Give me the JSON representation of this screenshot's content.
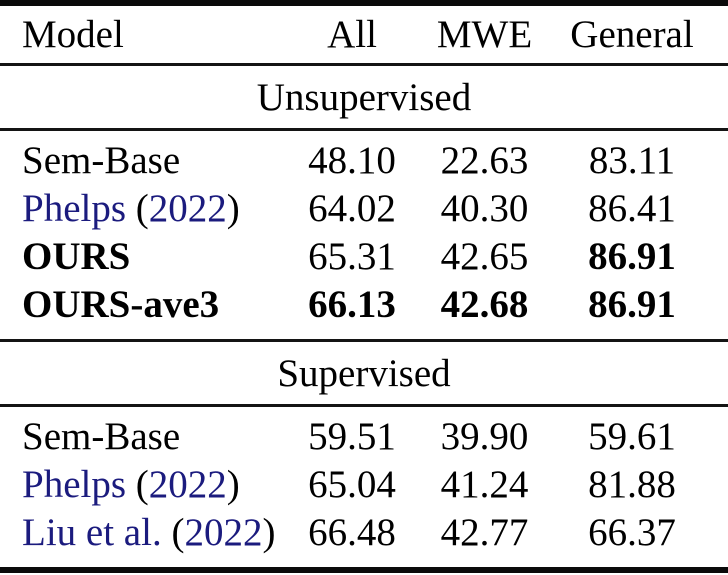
{
  "table": {
    "columns": [
      "Model",
      "All",
      "MWE",
      "General"
    ],
    "link_color": "#1b1b7e",
    "text_color": "#000000",
    "sections": [
      {
        "title": "Unsupervised",
        "rows": [
          {
            "model": [
              {
                "t": "Sem-Base",
                "link": false,
                "bold": false
              }
            ],
            "values": [
              {
                "v": "48.10",
                "b": false
              },
              {
                "v": "22.63",
                "b": false
              },
              {
                "v": "83.11",
                "b": false
              }
            ]
          },
          {
            "model": [
              {
                "t": "Phelps",
                "link": true,
                "bold": false
              },
              {
                "t": " (",
                "link": false,
                "bold": false
              },
              {
                "t": "2022",
                "link": true,
                "bold": false
              },
              {
                "t": ")",
                "link": false,
                "bold": false
              }
            ],
            "values": [
              {
                "v": "64.02",
                "b": false
              },
              {
                "v": "40.30",
                "b": false
              },
              {
                "v": "86.41",
                "b": false
              }
            ]
          },
          {
            "model": [
              {
                "t": "OURS",
                "link": false,
                "bold": true
              }
            ],
            "values": [
              {
                "v": "65.31",
                "b": false
              },
              {
                "v": "42.65",
                "b": false
              },
              {
                "v": "86.91",
                "b": true
              }
            ]
          },
          {
            "model": [
              {
                "t": "OURS-ave3",
                "link": false,
                "bold": true
              }
            ],
            "values": [
              {
                "v": "66.13",
                "b": true
              },
              {
                "v": "42.68",
                "b": true
              },
              {
                "v": "86.91",
                "b": true
              }
            ]
          }
        ]
      },
      {
        "title": "Supervised",
        "rows": [
          {
            "model": [
              {
                "t": "Sem-Base",
                "link": false,
                "bold": false
              }
            ],
            "values": [
              {
                "v": "59.51",
                "b": false
              },
              {
                "v": "39.90",
                "b": false
              },
              {
                "v": "59.61",
                "b": false
              }
            ]
          },
          {
            "model": [
              {
                "t": "Phelps",
                "link": true,
                "bold": false
              },
              {
                "t": " (",
                "link": false,
                "bold": false
              },
              {
                "t": "2022",
                "link": true,
                "bold": false
              },
              {
                "t": ")",
                "link": false,
                "bold": false
              }
            ],
            "values": [
              {
                "v": "65.04",
                "b": false
              },
              {
                "v": "41.24",
                "b": false
              },
              {
                "v": "81.88",
                "b": false
              }
            ]
          },
          {
            "model": [
              {
                "t": "Liu et al.",
                "link": true,
                "bold": false
              },
              {
                "t": " (",
                "link": false,
                "bold": false
              },
              {
                "t": "2022",
                "link": true,
                "bold": false
              },
              {
                "t": ")",
                "link": false,
                "bold": false
              }
            ],
            "values": [
              {
                "v": "66.48",
                "b": false
              },
              {
                "v": "42.77",
                "b": false
              },
              {
                "v": "66.37",
                "b": false
              }
            ]
          }
        ]
      }
    ]
  }
}
